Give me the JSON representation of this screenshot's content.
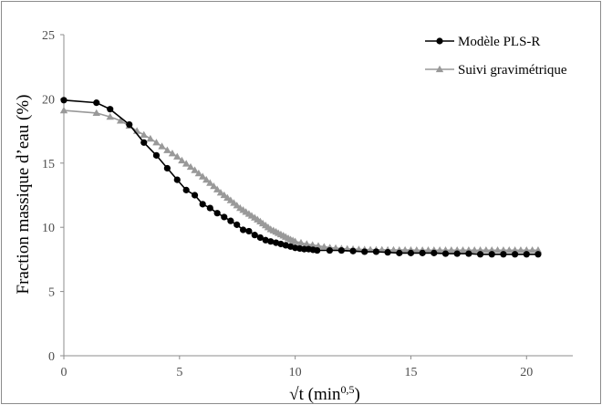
{
  "chart_data": {
    "type": "line",
    "xlabel_prefix": "√t (min",
    "xlabel_exp": "0,5",
    "xlabel_suffix": ")",
    "ylabel": "Fraction massique d’eau (%)",
    "xlim": [
      0,
      22
    ],
    "ylim": [
      0,
      25
    ],
    "xticks": [
      0,
      5,
      10,
      15,
      20
    ],
    "yticks": [
      0,
      5,
      10,
      15,
      20,
      25
    ],
    "grid": false,
    "legend_position": "top-right",
    "series": [
      {
        "name": "Modèle PLS-R",
        "color": "#000000",
        "marker": "circle",
        "x": [
          0,
          1.41,
          2,
          2.83,
          3.46,
          4,
          4.47,
          4.9,
          5.29,
          5.66,
          6,
          6.32,
          6.63,
          6.93,
          7.21,
          7.48,
          7.75,
          8,
          8.25,
          8.49,
          8.72,
          8.94,
          9.17,
          9.38,
          9.59,
          9.8,
          10,
          10.2,
          10.39,
          10.58,
          10.77,
          10.95,
          11.49,
          12,
          12.5,
          13,
          13.5,
          14,
          14.5,
          15,
          15.5,
          16,
          16.5,
          17,
          17.5,
          18,
          18.5,
          19,
          19.5,
          20,
          20.5
        ],
        "y": [
          19.9,
          19.7,
          19.2,
          18.0,
          16.6,
          15.6,
          14.6,
          13.7,
          12.9,
          12.5,
          11.8,
          11.5,
          11.1,
          10.8,
          10.5,
          10.2,
          9.8,
          9.7,
          9.4,
          9.2,
          9.0,
          8.9,
          8.8,
          8.7,
          8.6,
          8.5,
          8.4,
          8.35,
          8.3,
          8.3,
          8.25,
          8.2,
          8.2,
          8.2,
          8.15,
          8.1,
          8.1,
          8.05,
          8.0,
          8.0,
          8.0,
          8.0,
          7.95,
          7.95,
          7.95,
          7.9,
          7.9,
          7.9,
          7.9,
          7.9,
          7.9
        ]
      },
      {
        "name": "Suivi gravimétrique",
        "color": "#999999",
        "marker": "triangle",
        "x": [
          0,
          1.41,
          2,
          2.45,
          2.83,
          3.16,
          3.46,
          3.74,
          4,
          4.24,
          4.47,
          4.69,
          4.9,
          5.1,
          5.29,
          5.48,
          5.66,
          5.83,
          6,
          6.16,
          6.32,
          6.48,
          6.63,
          6.78,
          6.93,
          7.07,
          7.21,
          7.35,
          7.48,
          7.62,
          7.75,
          7.87,
          8,
          8.12,
          8.25,
          8.37,
          8.49,
          8.6,
          8.72,
          8.83,
          8.94,
          9.06,
          9.17,
          9.27,
          9.38,
          9.49,
          9.59,
          9.7,
          9.8,
          9.9,
          10,
          10.25,
          10.5,
          10.75,
          11,
          11.25,
          11.5,
          11.75,
          12,
          12.25,
          12.5,
          12.75,
          13,
          13.25,
          13.5,
          13.75,
          14,
          14.25,
          14.5,
          14.75,
          15,
          15.25,
          15.5,
          15.75,
          16,
          16.25,
          16.5,
          16.75,
          17,
          17.25,
          17.5,
          17.75,
          18,
          18.25,
          18.5,
          18.75,
          19,
          19.25,
          19.5,
          19.75,
          20,
          20.25,
          20.5
        ],
        "y": [
          19.1,
          18.9,
          18.6,
          18.3,
          17.9,
          17.5,
          17.2,
          16.9,
          16.6,
          16.3,
          16.0,
          15.75,
          15.5,
          15.2,
          14.95,
          14.7,
          14.45,
          14.2,
          13.95,
          13.7,
          13.45,
          13.2,
          12.95,
          12.7,
          12.5,
          12.3,
          12.1,
          11.9,
          11.7,
          11.5,
          11.35,
          11.2,
          11.05,
          10.9,
          10.75,
          10.6,
          10.45,
          10.3,
          10.15,
          10.0,
          9.85,
          9.75,
          9.65,
          9.55,
          9.45,
          9.35,
          9.25,
          9.15,
          9.05,
          8.98,
          8.9,
          8.8,
          8.7,
          8.62,
          8.55,
          8.48,
          8.42,
          8.38,
          8.35,
          8.32,
          8.3,
          8.28,
          8.27,
          8.26,
          8.25,
          8.25,
          8.24,
          8.24,
          8.23,
          8.23,
          8.23,
          8.22,
          8.22,
          8.22,
          8.22,
          8.22,
          8.22,
          8.22,
          8.22,
          8.22,
          8.22,
          8.22,
          8.22,
          8.22,
          8.22,
          8.22,
          8.22,
          8.22,
          8.22,
          8.22,
          8.22,
          8.22,
          8.22
        ]
      }
    ]
  }
}
